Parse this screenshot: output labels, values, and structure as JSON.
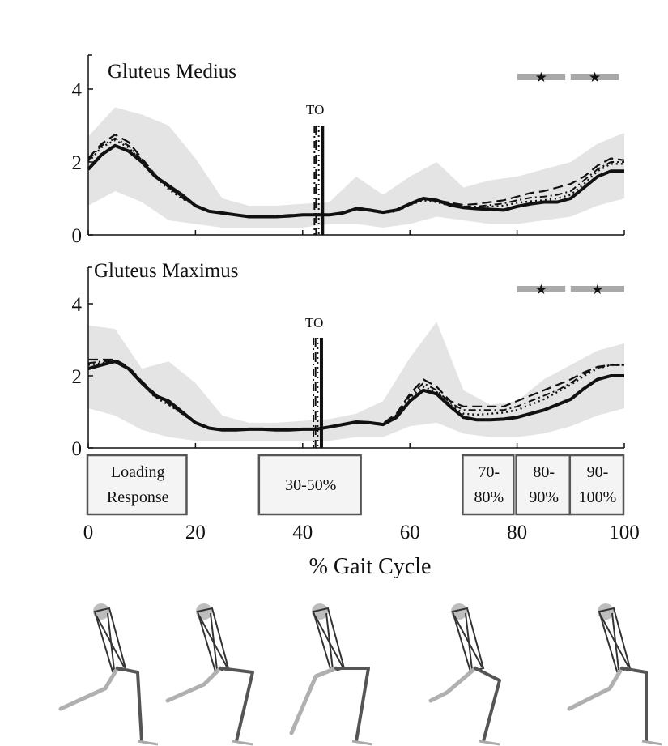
{
  "chart_data": [
    {
      "type": "line",
      "title": "Gluteus Medius",
      "xlim": [
        0,
        100
      ],
      "ylim": [
        0,
        5
      ],
      "y_ticks": [
        "0",
        "2",
        "4"
      ],
      "grid": false,
      "to_label": "TO",
      "to_lines": [
        {
          "style": "dash-dot",
          "x": 42.2
        },
        {
          "style": "dashed",
          "x": 42.5
        },
        {
          "style": "dotted",
          "x": 43.0
        },
        {
          "style": "solid",
          "x": 43.7
        }
      ],
      "band": {
        "x": [
          0,
          5,
          10,
          15,
          20,
          25,
          30,
          35,
          40,
          45,
          50,
          55,
          60,
          65,
          70,
          75,
          80,
          85,
          90,
          95,
          100
        ],
        "upper": [
          2.7,
          3.5,
          3.3,
          3.0,
          2.1,
          1.0,
          0.8,
          0.8,
          0.85,
          0.9,
          1.6,
          1.1,
          1.6,
          2.0,
          1.3,
          1.5,
          1.6,
          1.8,
          2.0,
          2.5,
          2.8
        ],
        "lower": [
          0.8,
          1.2,
          0.9,
          0.4,
          0.3,
          0.2,
          0.2,
          0.2,
          0.2,
          0.3,
          0.3,
          0.2,
          0.3,
          0.5,
          0.4,
          0.3,
          0.3,
          0.4,
          0.5,
          0.8,
          1.0
        ]
      },
      "x": [
        0,
        2.5,
        5,
        7.5,
        10,
        12.5,
        15,
        17.5,
        20,
        22.5,
        25,
        27.5,
        30,
        32.5,
        35,
        37.5,
        40,
        42.5,
        45,
        47.5,
        50,
        52.5,
        55,
        57.5,
        60,
        62.5,
        65,
        67.5,
        70,
        72.5,
        75,
        77.5,
        80,
        82.5,
        85,
        87.5,
        90,
        92.5,
        95,
        97.5,
        100
      ],
      "series": [
        {
          "style": "solid",
          "values": [
            1.8,
            2.2,
            2.45,
            2.3,
            2.0,
            1.6,
            1.35,
            1.1,
            0.8,
            0.65,
            0.6,
            0.55,
            0.5,
            0.5,
            0.5,
            0.52,
            0.55,
            0.55,
            0.55,
            0.6,
            0.72,
            0.68,
            0.62,
            0.68,
            0.85,
            1.0,
            0.95,
            0.82,
            0.75,
            0.72,
            0.7,
            0.68,
            0.78,
            0.85,
            0.9,
            0.9,
            1.0,
            1.3,
            1.6,
            1.75,
            1.75
          ]
        },
        {
          "style": "dashed",
          "values": [
            2.1,
            2.5,
            2.75,
            2.55,
            2.1,
            1.65,
            1.3,
            1.05,
            0.8,
            0.65,
            0.6,
            0.55,
            0.52,
            0.52,
            0.52,
            0.55,
            0.55,
            0.55,
            0.55,
            0.62,
            0.75,
            0.7,
            0.62,
            0.68,
            0.85,
            1.0,
            0.95,
            0.88,
            0.82,
            0.85,
            0.9,
            0.95,
            1.05,
            1.15,
            1.2,
            1.3,
            1.4,
            1.6,
            1.9,
            2.1,
            2.05
          ]
        },
        {
          "style": "dotted",
          "values": [
            2.0,
            2.4,
            2.6,
            2.4,
            2.0,
            1.6,
            1.25,
            1.0,
            0.8,
            0.65,
            0.6,
            0.55,
            0.5,
            0.5,
            0.5,
            0.52,
            0.55,
            0.55,
            0.55,
            0.6,
            0.72,
            0.66,
            0.6,
            0.65,
            0.82,
            0.95,
            0.9,
            0.8,
            0.75,
            0.75,
            0.78,
            0.8,
            0.88,
            0.92,
            0.95,
            1.0,
            1.1,
            1.4,
            1.75,
            1.95,
            1.95
          ]
        },
        {
          "style": "dash-dot",
          "values": [
            2.05,
            2.45,
            2.65,
            2.45,
            2.05,
            1.6,
            1.3,
            1.02,
            0.8,
            0.65,
            0.6,
            0.55,
            0.5,
            0.5,
            0.5,
            0.52,
            0.55,
            0.55,
            0.55,
            0.6,
            0.72,
            0.67,
            0.6,
            0.66,
            0.84,
            0.98,
            0.93,
            0.85,
            0.78,
            0.78,
            0.82,
            0.86,
            0.95,
            1.02,
            1.05,
            1.1,
            1.2,
            1.5,
            1.8,
            2.0,
            2.0
          ]
        }
      ],
      "significance_markers": [
        {
          "x_start": 80,
          "x_end": 89,
          "label": "★"
        },
        {
          "x_start": 90,
          "x_end": 99,
          "label": "★"
        }
      ]
    },
    {
      "type": "line",
      "title": "Gluteus Maximus",
      "xlim": [
        0,
        100
      ],
      "ylim": [
        0,
        5
      ],
      "y_ticks": [
        "0",
        "2",
        "4"
      ],
      "x_ticks": [
        "0",
        "20",
        "40",
        "60",
        "80",
        "100"
      ],
      "xlabel": "% Gait Cycle",
      "grid": false,
      "to_label": "TO",
      "to_lines": [
        {
          "style": "dash-dot",
          "x": 42.0
        },
        {
          "style": "dashed",
          "x": 42.4
        },
        {
          "style": "dotted",
          "x": 42.8
        },
        {
          "style": "solid",
          "x": 43.5
        }
      ],
      "band": {
        "x": [
          0,
          5,
          10,
          15,
          20,
          25,
          30,
          35,
          40,
          45,
          50,
          55,
          60,
          65,
          70,
          75,
          80,
          85,
          90,
          95,
          100
        ],
        "upper": [
          3.4,
          3.3,
          2.2,
          2.4,
          1.8,
          0.9,
          0.7,
          0.7,
          0.75,
          0.8,
          0.95,
          1.3,
          2.5,
          3.5,
          1.6,
          1.2,
          1.3,
          1.9,
          2.3,
          2.7,
          2.9
        ],
        "lower": [
          1.1,
          0.9,
          0.5,
          0.3,
          0.2,
          0.2,
          0.2,
          0.2,
          0.2,
          0.2,
          0.3,
          0.3,
          0.6,
          0.7,
          0.4,
          0.3,
          0.3,
          0.4,
          0.6,
          0.9,
          1.1
        ]
      },
      "x": [
        0,
        2.5,
        5,
        7.5,
        10,
        12.5,
        15,
        17.5,
        20,
        22.5,
        25,
        27.5,
        30,
        32.5,
        35,
        37.5,
        40,
        42.5,
        45,
        47.5,
        50,
        52.5,
        55,
        57.5,
        60,
        62.5,
        65,
        67.5,
        70,
        72.5,
        75,
        77.5,
        80,
        82.5,
        85,
        87.5,
        90,
        92.5,
        95,
        97.5,
        100
      ],
      "series": [
        {
          "style": "solid",
          "values": [
            2.2,
            2.3,
            2.4,
            2.2,
            1.8,
            1.45,
            1.3,
            1.0,
            0.7,
            0.55,
            0.5,
            0.5,
            0.52,
            0.52,
            0.5,
            0.5,
            0.52,
            0.52,
            0.58,
            0.65,
            0.72,
            0.7,
            0.65,
            0.85,
            1.3,
            1.6,
            1.5,
            1.15,
            0.85,
            0.78,
            0.78,
            0.8,
            0.85,
            0.95,
            1.05,
            1.2,
            1.35,
            1.65,
            1.9,
            2.0,
            2.0
          ]
        },
        {
          "style": "dashed",
          "values": [
            2.45,
            2.45,
            2.45,
            2.25,
            1.85,
            1.5,
            1.25,
            0.95,
            0.7,
            0.55,
            0.52,
            0.52,
            0.52,
            0.52,
            0.52,
            0.52,
            0.52,
            0.52,
            0.58,
            0.65,
            0.72,
            0.7,
            0.68,
            0.95,
            1.5,
            1.9,
            1.7,
            1.3,
            1.15,
            1.15,
            1.15,
            1.15,
            1.3,
            1.45,
            1.6,
            1.75,
            1.9,
            2.1,
            2.25,
            2.3,
            2.3
          ]
        },
        {
          "style": "dotted",
          "values": [
            2.3,
            2.35,
            2.4,
            2.2,
            1.8,
            1.4,
            1.2,
            0.95,
            0.7,
            0.55,
            0.5,
            0.5,
            0.52,
            0.52,
            0.5,
            0.5,
            0.52,
            0.52,
            0.58,
            0.65,
            0.72,
            0.7,
            0.65,
            0.9,
            1.4,
            1.7,
            1.55,
            1.2,
            0.95,
            0.92,
            0.95,
            0.98,
            1.05,
            1.2,
            1.35,
            1.55,
            1.75,
            2.0,
            2.2,
            2.3,
            2.3
          ]
        },
        {
          "style": "dash-dot",
          "values": [
            2.35,
            2.4,
            2.42,
            2.22,
            1.82,
            1.45,
            1.22,
            0.95,
            0.7,
            0.55,
            0.5,
            0.5,
            0.52,
            0.52,
            0.5,
            0.5,
            0.52,
            0.52,
            0.58,
            0.65,
            0.72,
            0.7,
            0.66,
            0.92,
            1.45,
            1.8,
            1.6,
            1.25,
            1.05,
            1.05,
            1.05,
            1.05,
            1.15,
            1.3,
            1.45,
            1.6,
            1.8,
            2.05,
            2.22,
            2.3,
            2.3
          ]
        }
      ],
      "significance_markers": [
        {
          "x_start": 80,
          "x_end": 89,
          "label": "★"
        },
        {
          "x_start": 90,
          "x_end": 100,
          "label": "★"
        }
      ]
    }
  ],
  "phase_boxes": [
    {
      "label_line1": "Loading",
      "label_line2": "Response",
      "x_start": 0,
      "x_end": 18.5
    },
    {
      "label_line1": "30-50%",
      "label_line2": "",
      "x_start": 32,
      "x_end": 51
    },
    {
      "label_line1": "70-",
      "label_line2": "80%",
      "x_start": 70,
      "x_end": 79.5
    },
    {
      "label_line1": "80-",
      "label_line2": "90%",
      "x_start": 80,
      "x_end": 90
    },
    {
      "label_line1": "90-",
      "label_line2": "100%",
      "x_start": 90,
      "x_end": 100
    }
  ],
  "skeleton_figures": [
    {
      "name": "skeleton-loading-response"
    },
    {
      "name": "skeleton-30-50"
    },
    {
      "name": "skeleton-70-80"
    },
    {
      "name": "skeleton-80-90"
    },
    {
      "name": "skeleton-90-100"
    }
  ]
}
